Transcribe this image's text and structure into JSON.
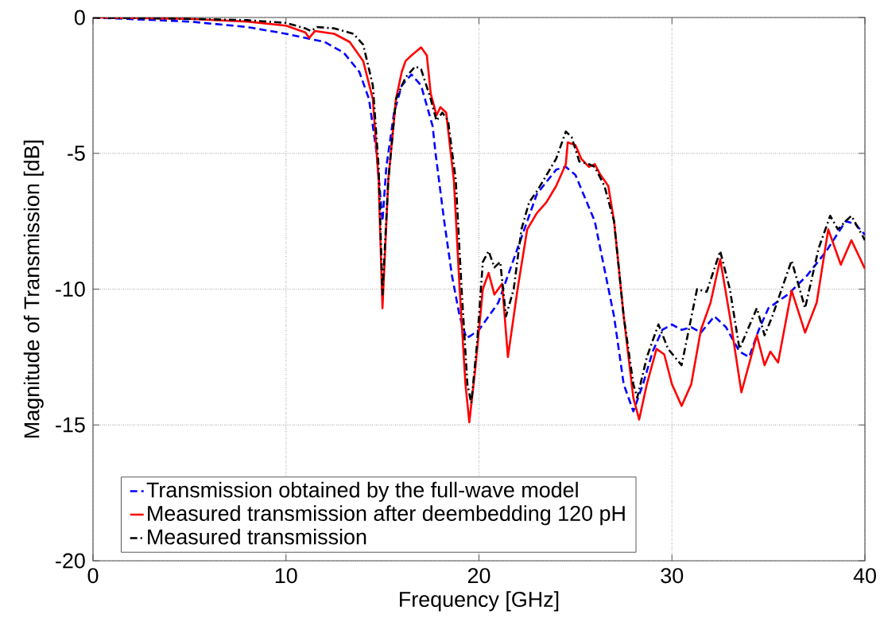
{
  "chart_data": {
    "type": "line",
    "xlabel": "Frequency [GHz]",
    "ylabel": "Magnitude of Transmission [dB]",
    "xlim": [
      0,
      40
    ],
    "ylim": [
      -20,
      0
    ],
    "xticks": [
      0,
      10,
      20,
      30,
      40
    ],
    "yticks": [
      -20,
      -15,
      -10,
      -5,
      0
    ],
    "grid": true,
    "legend": "bottom left",
    "series": [
      {
        "name": "Transmission obtained by the full-wave model",
        "color": "#0000ff",
        "line_style": "dashed",
        "x": [
          0,
          5,
          8,
          10,
          12,
          13,
          13.8,
          14.3,
          14.7,
          15,
          15.2,
          15.6,
          16,
          16.5,
          17,
          17.6,
          17.75,
          18.2,
          18.6,
          19,
          19.35,
          19.6,
          20,
          21,
          22,
          23,
          24,
          24.5,
          25,
          26,
          27,
          27.5,
          28,
          28.5,
          29,
          29.5,
          30,
          30.5,
          31,
          31.5,
          32.2,
          32.8,
          33.5,
          34,
          34.5,
          35,
          36,
          37,
          38,
          39,
          39.5,
          40
        ],
        "values": [
          0,
          -0.15,
          -0.35,
          -0.6,
          -0.9,
          -1.3,
          -2,
          -3,
          -5,
          -7.5,
          -5.5,
          -3.5,
          -2.5,
          -2.1,
          -2.5,
          -4,
          -5,
          -7.5,
          -9.5,
          -11,
          -11.8,
          -11.7,
          -11.5,
          -10.5,
          -8.5,
          -6.5,
          -5.6,
          -5.5,
          -5.8,
          -7.5,
          -11,
          -13.5,
          -14.5,
          -13.5,
          -12.3,
          -11.5,
          -11.3,
          -11.5,
          -11.4,
          -11.6,
          -11,
          -11.4,
          -12.3,
          -12.5,
          -11.5,
          -10.7,
          -10.2,
          -9.5,
          -8.6,
          -7.5,
          -7.6,
          -8.0
        ]
      },
      {
        "name": "Measured transmission after deembedding 120 pH",
        "color": "#ff0000",
        "line_style": "solid",
        "x": [
          0,
          5,
          8,
          10,
          11,
          11.2,
          11.5,
          12.5,
          13.3,
          14,
          14.5,
          14.8,
          15,
          15.3,
          15.7,
          16,
          16.2,
          16.5,
          17,
          17.3,
          17.5,
          17.8,
          18,
          18.3,
          18.7,
          19,
          19.3,
          19.5,
          19.8,
          20.2,
          20.5,
          20.8,
          21.2,
          21.5,
          22,
          22.5,
          23,
          23.5,
          24,
          24.5,
          24.6,
          25,
          25.3,
          25.7,
          26,
          26.3,
          26.7,
          27,
          27.5,
          28,
          28.3,
          28.7,
          29.2,
          29.6,
          30,
          30.5,
          31,
          31.5,
          32,
          32.5,
          33,
          33.6,
          34.4,
          34.8,
          35.1,
          35.5,
          36.2,
          36.9,
          37.5,
          38.1,
          38.75,
          39.3,
          40
        ],
        "values": [
          0,
          -0.05,
          -0.15,
          -0.3,
          -0.55,
          -0.75,
          -0.5,
          -0.6,
          -0.9,
          -1.6,
          -3,
          -6,
          -10.7,
          -6,
          -3,
          -2,
          -1.6,
          -1.4,
          -1.1,
          -1.4,
          -2.8,
          -3.6,
          -3.3,
          -3.5,
          -6,
          -10,
          -13.5,
          -14.9,
          -13,
          -10,
          -9.4,
          -10.2,
          -9.8,
          -12.5,
          -10,
          -7.8,
          -7.2,
          -6.8,
          -6.2,
          -5.4,
          -4.6,
          -4.7,
          -5.2,
          -5.5,
          -5.4,
          -5.8,
          -6.2,
          -7.5,
          -11,
          -14,
          -14.8,
          -13.5,
          -12.2,
          -12.4,
          -13.5,
          -14.3,
          -13.5,
          -11.5,
          -10.5,
          -8.9,
          -11,
          -13.8,
          -11.7,
          -12.8,
          -12.3,
          -12.7,
          -10.05,
          -11.6,
          -10.5,
          -7.8,
          -9.1,
          -8.2,
          -9.25
        ]
      },
      {
        "name": "Measured transmission",
        "color": "#000000",
        "line_style": "dashdot",
        "x": [
          0,
          5,
          8,
          10,
          11,
          11.3,
          11.6,
          12.5,
          13.5,
          14,
          14.5,
          14.8,
          15,
          15.3,
          15.7,
          16.2,
          16.7,
          17,
          17.5,
          17.8,
          18.1,
          18.4,
          18.8,
          19.1,
          19.4,
          19.6,
          19.9,
          20.2,
          20.5,
          20.8,
          21.1,
          21.4,
          21.8,
          22.2,
          22.6,
          23,
          23.5,
          24,
          24.5,
          24.8,
          25.2,
          25.7,
          26,
          26.5,
          27,
          27.5,
          28,
          28.2,
          28.7,
          29.3,
          29.8,
          30.5,
          31.3,
          31.8,
          32.5,
          33,
          33.5,
          34.4,
          34.8,
          35.2,
          36.2,
          36.9,
          37.6,
          38.2,
          38.6,
          39,
          39.3,
          40
        ],
        "values": [
          0,
          -0.05,
          -0.1,
          -0.2,
          -0.4,
          -0.5,
          -0.35,
          -0.4,
          -0.6,
          -1.0,
          -2.5,
          -5.5,
          -10.2,
          -6,
          -3,
          -2.2,
          -1.8,
          -1.9,
          -3,
          -3.8,
          -3.5,
          -3.8,
          -6,
          -10,
          -13.5,
          -14.2,
          -12,
          -9,
          -8.6,
          -9.2,
          -9.0,
          -11,
          -10,
          -7.8,
          -6.8,
          -6.4,
          -5.8,
          -5.2,
          -4.2,
          -4.4,
          -5.3,
          -5.4,
          -5.5,
          -6.2,
          -7.5,
          -11,
          -13.5,
          -14,
          -12.5,
          -11.3,
          -12.2,
          -12.8,
          -10.0,
          -10.1,
          -8.6,
          -10,
          -12.2,
          -10.7,
          -11.7,
          -11.0,
          -8.95,
          -10.7,
          -8.5,
          -7.3,
          -7.8,
          -7.5,
          -7.3,
          -8.2
        ]
      }
    ]
  }
}
